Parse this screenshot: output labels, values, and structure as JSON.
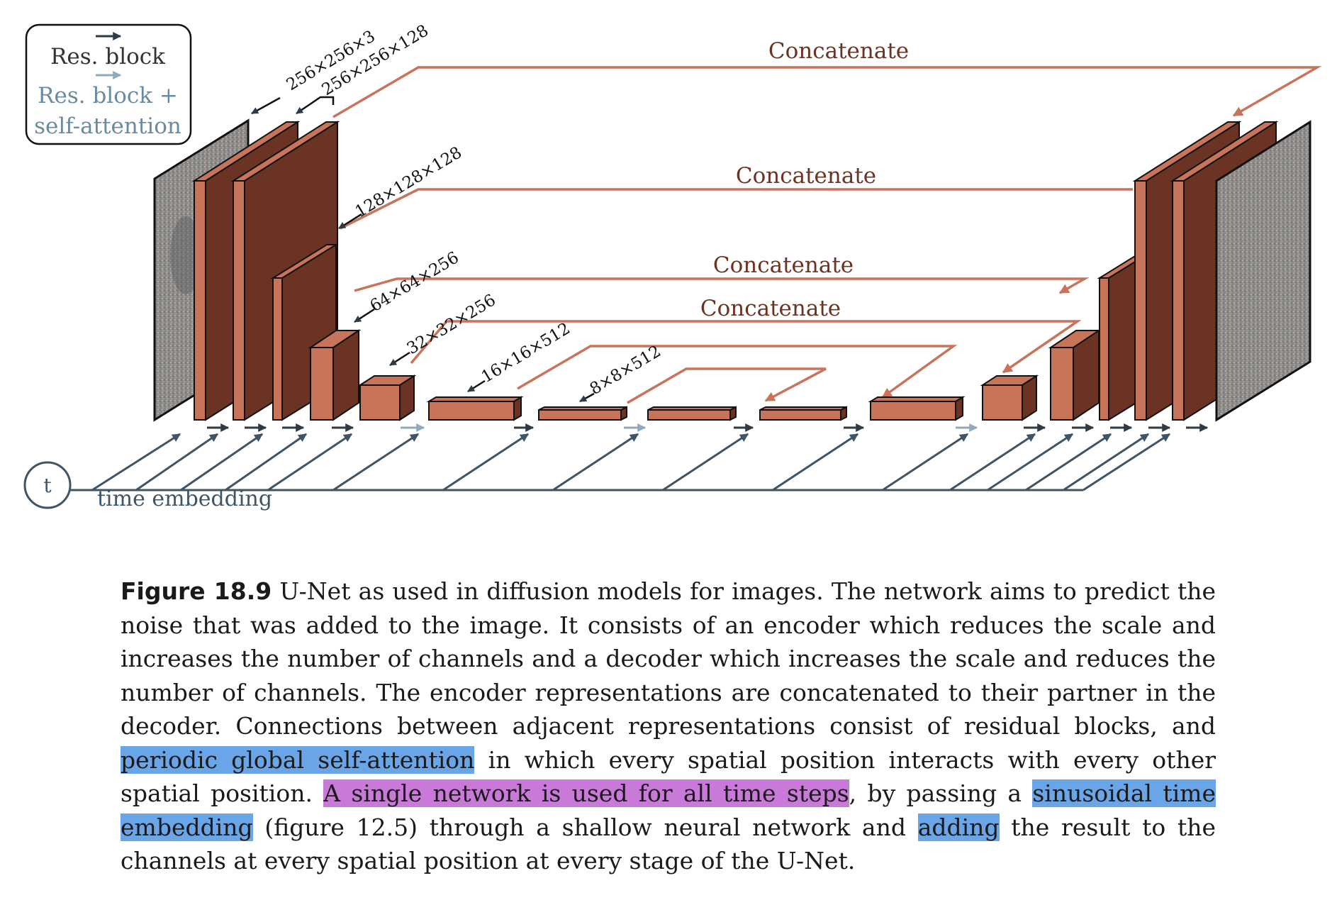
{
  "legend": {
    "res_block": "Res. block",
    "res_attn_line1": "Res. block +",
    "res_attn_line2": "self-attention"
  },
  "time_node": "t",
  "time_embedding_label": "time embedding",
  "concatenate_labels": [
    "Concatenate",
    "Concatenate",
    "Concatenate",
    "Concatenate"
  ],
  "shape_labels": [
    "256×256×3",
    "256×256×128",
    "128×128×128",
    "64×64×256",
    "32×32×256",
    "16×16×512",
    "8×8×512"
  ],
  "colors": {
    "block_front": "#c8745a",
    "block_side": "#6b3323",
    "skip_line": "#c8745a",
    "concat_text": "#6b3323",
    "res_arrow": "#2e3a44",
    "attn_arrow": "#8fa9bd",
    "time_line": "#3f5566",
    "highlight_blue": "#6aa5e8",
    "highlight_purple": "#c97ad9"
  },
  "caption": {
    "label": "Figure 18.9",
    "part1": " U-Net as used in diffusion models for images. The network aims to predict the noise that was added to the image. It consists of an encoder which reduces the scale and increases the number of channels and a decoder which increases the scale and reduces the number of channels. The encoder representations are concatenated to their partner in the decoder. Connections between adjacent representations consist of residual blocks, and ",
    "hl1": "periodic global self-attention",
    "part2": " in which every spatial position interacts with every other spatial position. ",
    "hl2": "A single network is used for all time steps",
    "part3": ", by passing a ",
    "hl3": "sinusoidal time embedding",
    "part4": " (figure 12.5) through a shallow neural network and ",
    "hl4": "adding",
    "part5": " the result to the channels at every spatial position at every stage of the U-Net."
  }
}
